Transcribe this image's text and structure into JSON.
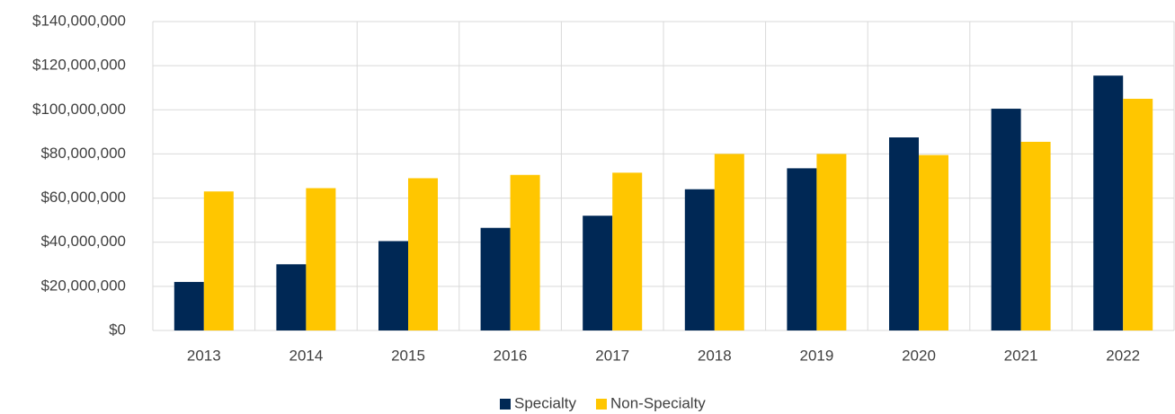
{
  "chart_data": {
    "type": "bar",
    "categories": [
      "2013",
      "2014",
      "2015",
      "2016",
      "2017",
      "2018",
      "2019",
      "2020",
      "2021",
      "2022"
    ],
    "series": [
      {
        "name": "Specialty",
        "color": "#002855",
        "values": [
          22000000,
          30000000,
          40500000,
          46500000,
          52000000,
          64000000,
          73500000,
          87500000,
          100500000,
          115500000
        ]
      },
      {
        "name": "Non-Specialty",
        "color": "#ffc600",
        "values": [
          63000000,
          64500000,
          69000000,
          70500000,
          71500000,
          80000000,
          80000000,
          79500000,
          85500000,
          105000000
        ]
      }
    ],
    "ylim": [
      0,
      140000000
    ],
    "yticks": [
      {
        "value": 0,
        "label": "$0"
      },
      {
        "value": 20000000,
        "label": "$20,000,000"
      },
      {
        "value": 40000000,
        "label": "$40,000,000"
      },
      {
        "value": 60000000,
        "label": "$60,000,000"
      },
      {
        "value": 80000000,
        "label": "$80,000,000"
      },
      {
        "value": 100000000,
        "label": "$100,000,000"
      },
      {
        "value": 120000000,
        "label": "$120,000,000"
      },
      {
        "value": 140000000,
        "label": "$140,000,000"
      }
    ],
    "grid": true,
    "legend": "bottom"
  }
}
